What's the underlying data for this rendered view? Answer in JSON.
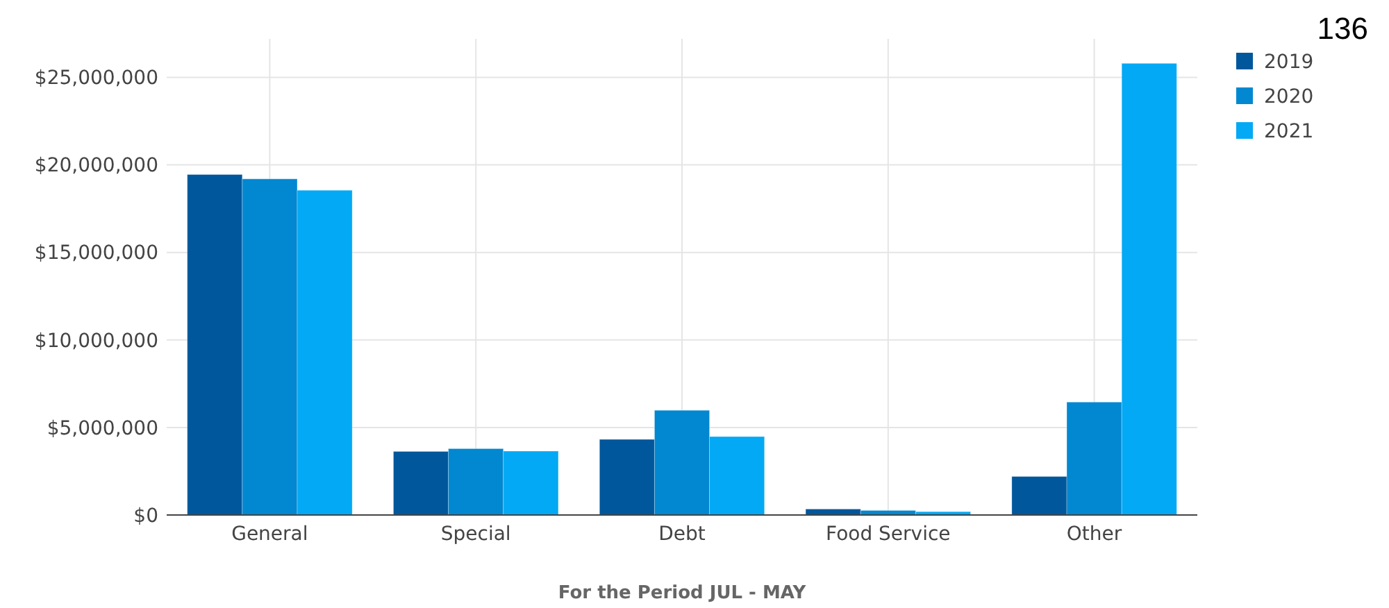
{
  "chart_data": {
    "type": "bar",
    "xlabel": "For the Period JUL - MAY",
    "annotations": [
      "136"
    ],
    "categories": [
      "General",
      "Special",
      "Debt",
      "Food Service",
      "Other"
    ],
    "series": [
      {
        "name": "2019",
        "color": "#01579b",
        "values": [
          19450000,
          3630000,
          4320000,
          340000,
          2200000
        ]
      },
      {
        "name": "2020",
        "color": "#0288d1",
        "values": [
          19200000,
          3790000,
          5980000,
          260000,
          6450000
        ]
      },
      {
        "name": "2021",
        "color": "#03a9f4",
        "values": [
          18550000,
          3650000,
          4480000,
          190000,
          25800000
        ]
      }
    ],
    "ylim": [
      0,
      27200000
    ],
    "yticks": [
      {
        "value": 0,
        "label": "$0"
      },
      {
        "value": 5000000,
        "label": "$5,000,000"
      },
      {
        "value": 10000000,
        "label": "$10,000,000"
      },
      {
        "value": 15000000,
        "label": "$15,000,000"
      },
      {
        "value": 20000000,
        "label": "$20,000,000"
      },
      {
        "value": 25000000,
        "label": "$25,000,000"
      }
    ],
    "grid": true,
    "legend": "top right"
  }
}
